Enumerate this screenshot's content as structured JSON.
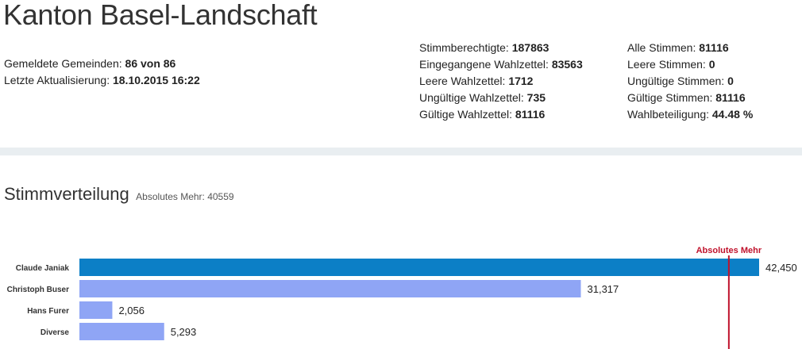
{
  "header": {
    "title": "Kanton Basel-Landschaft"
  },
  "meta_left": [
    {
      "label": "Gemeldete Gemeinden: ",
      "value": "86 von 86"
    },
    {
      "label": "Letzte Aktualisierung: ",
      "value": "18.10.2015 16:22"
    }
  ],
  "meta_mid": [
    {
      "label": "Stimmberechtigte: ",
      "value": "187863"
    },
    {
      "label": "Eingegangene Wahlzettel: ",
      "value": "83563"
    },
    {
      "label": "Leere Wahlzettel: ",
      "value": "1712"
    },
    {
      "label": "Ungültige Wahlzettel: ",
      "value": "735"
    },
    {
      "label": "Gültige Wahlzettel: ",
      "value": "81116"
    }
  ],
  "meta_right": [
    {
      "label": "Alle Stimmen: ",
      "value": "81116"
    },
    {
      "label": "Leere Stimmen: ",
      "value": "0"
    },
    {
      "label": "Ungültige Stimmen: ",
      "value": "0"
    },
    {
      "label": "Gültige Stimmen: ",
      "value": "81116"
    },
    {
      "label": "Wahlbeteiligung: ",
      "value": "44.48 %"
    }
  ],
  "section": {
    "title": "Stimmverteilung",
    "subtitle": "Absolutes Mehr: 40559"
  },
  "colors": {
    "leader": "#0c7fc6",
    "other": "#8fa5f5",
    "reference": "#c0122c"
  },
  "chart_data": {
    "type": "bar",
    "orientation": "horizontal",
    "categories": [
      "Claude Janiak",
      "Christoph Buser",
      "Hans Furer",
      "Diverse"
    ],
    "values": [
      42450,
      31317,
      2056,
      5293
    ],
    "value_labels": [
      "42,450",
      "31,317",
      "2,056",
      "5,293"
    ],
    "highlight_index": 0,
    "reference_line": {
      "label": "Absolutes Mehr",
      "value": 40559
    },
    "xlim": [
      0,
      42450
    ]
  }
}
